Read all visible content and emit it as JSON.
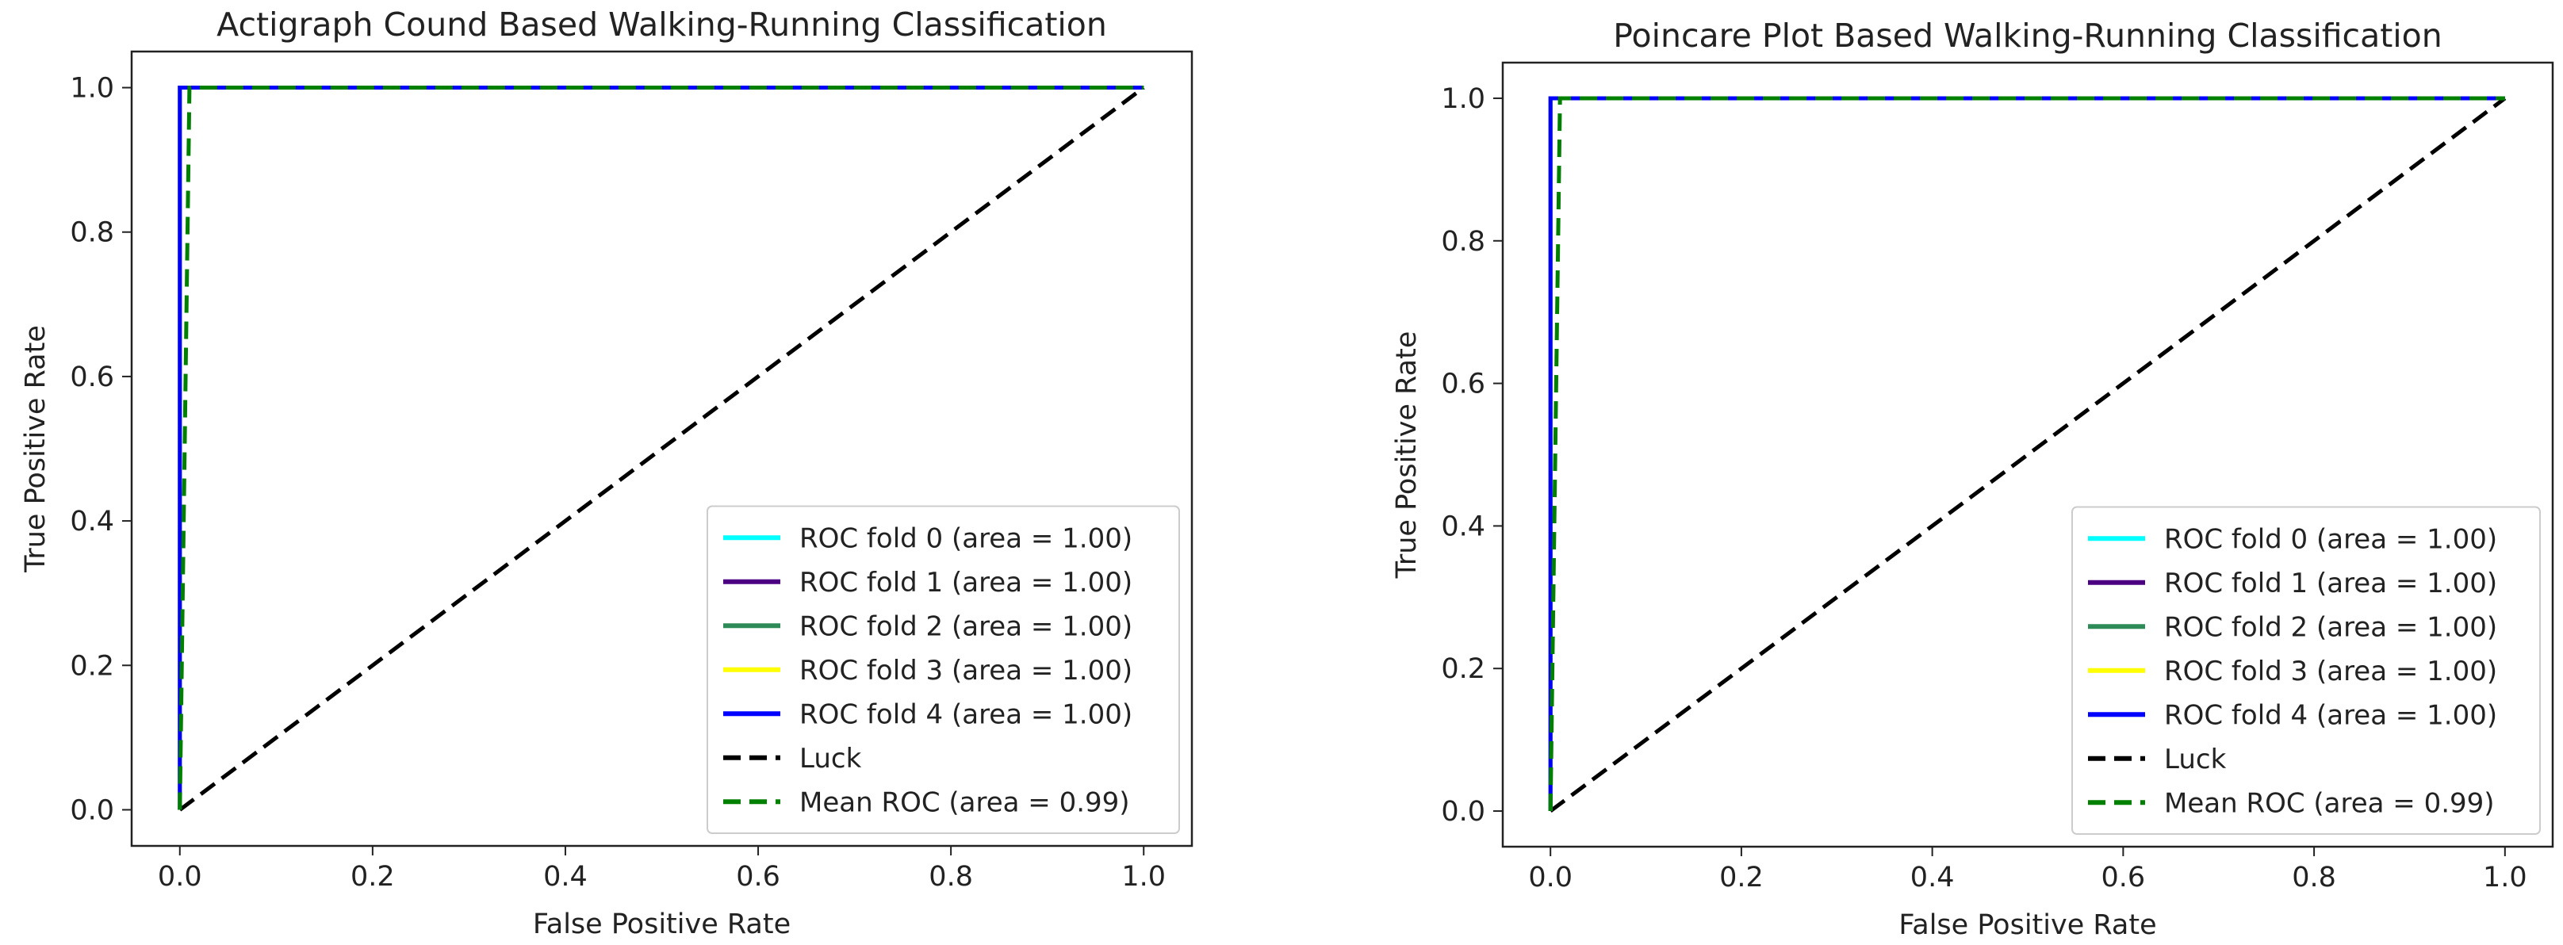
{
  "chart_data": [
    {
      "type": "line",
      "title": "Actigraph Cound Based Walking-Running Classification",
      "xlabel": "False Positive Rate",
      "ylabel": "True Positive Rate",
      "xlim": [
        -0.05,
        1.05
      ],
      "ylim": [
        -0.05,
        1.05
      ],
      "xticks": [
        "0.0",
        "0.2",
        "0.4",
        "0.6",
        "0.8",
        "1.0"
      ],
      "yticks": [
        "0.0",
        "0.2",
        "0.4",
        "0.6",
        "0.8",
        "1.0"
      ],
      "legend_position": "lower right",
      "series": [
        {
          "name": "ROC fold 0 (area = 1.00)",
          "color": "#00ffff",
          "dash": "solid",
          "x": [
            0,
            0,
            1
          ],
          "y": [
            0,
            1,
            1
          ]
        },
        {
          "name": "ROC fold 1 (area = 1.00)",
          "color": "#4b0082",
          "dash": "solid",
          "x": [
            0,
            0,
            1
          ],
          "y": [
            0,
            1,
            1
          ]
        },
        {
          "name": "ROC fold 2 (area = 1.00)",
          "color": "#2e8b57",
          "dash": "solid",
          "x": [
            0,
            0,
            1
          ],
          "y": [
            0,
            1,
            1
          ]
        },
        {
          "name": "ROC fold 3 (area = 1.00)",
          "color": "#ffff00",
          "dash": "solid",
          "x": [
            0,
            0,
            1
          ],
          "y": [
            0,
            1,
            1
          ]
        },
        {
          "name": "ROC fold 4 (area = 1.00)",
          "color": "#0000ff",
          "dash": "solid",
          "x": [
            0,
            0,
            1
          ],
          "y": [
            0,
            1,
            1
          ]
        },
        {
          "name": "Luck",
          "color": "#000000",
          "dash": "dashed",
          "x": [
            0,
            1
          ],
          "y": [
            0,
            1
          ]
        },
        {
          "name": "Mean ROC (area = 0.99)",
          "color": "#008000",
          "dash": "dashed",
          "x": [
            0,
            0.01,
            1
          ],
          "y": [
            0,
            1,
            1
          ]
        }
      ]
    },
    {
      "type": "line",
      "title": "Poincare Plot Based Walking-Running Classification",
      "xlabel": "False Positive Rate",
      "ylabel": "True Positive Rate",
      "xlim": [
        -0.05,
        1.05
      ],
      "ylim": [
        -0.05,
        1.05
      ],
      "xticks": [
        "0.0",
        "0.2",
        "0.4",
        "0.6",
        "0.8",
        "1.0"
      ],
      "yticks": [
        "0.0",
        "0.2",
        "0.4",
        "0.6",
        "0.8",
        "1.0"
      ],
      "legend_position": "lower right",
      "series": [
        {
          "name": "ROC fold 0 (area = 1.00)",
          "color": "#00ffff",
          "dash": "solid",
          "x": [
            0,
            0,
            1
          ],
          "y": [
            0,
            1,
            1
          ]
        },
        {
          "name": "ROC fold 1 (area = 1.00)",
          "color": "#4b0082",
          "dash": "solid",
          "x": [
            0,
            0,
            1
          ],
          "y": [
            0,
            1,
            1
          ]
        },
        {
          "name": "ROC fold 2 (area = 1.00)",
          "color": "#2e8b57",
          "dash": "solid",
          "x": [
            0,
            0,
            1
          ],
          "y": [
            0,
            1,
            1
          ]
        },
        {
          "name": "ROC fold 3 (area = 1.00)",
          "color": "#ffff00",
          "dash": "solid",
          "x": [
            0,
            0,
            1
          ],
          "y": [
            0,
            1,
            1
          ]
        },
        {
          "name": "ROC fold 4 (area = 1.00)",
          "color": "#0000ff",
          "dash": "solid",
          "x": [
            0,
            0,
            1
          ],
          "y": [
            0,
            1,
            1
          ]
        },
        {
          "name": "Luck",
          "color": "#000000",
          "dash": "dashed",
          "x": [
            0,
            1
          ],
          "y": [
            0,
            1
          ]
        },
        {
          "name": "Mean ROC (area = 0.99)",
          "color": "#008000",
          "dash": "dashed",
          "x": [
            0,
            0.01,
            1
          ],
          "y": [
            0,
            1,
            1
          ]
        }
      ]
    }
  ]
}
